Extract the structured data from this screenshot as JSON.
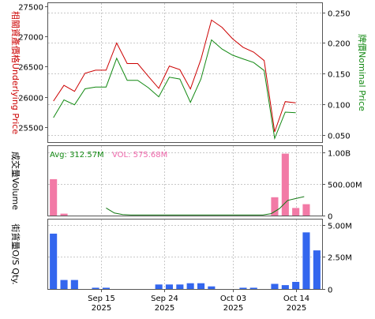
{
  "colors": {
    "underlying": "#cc0000",
    "nominal": "#118811",
    "volume_bar": "#f27aa6",
    "avg_line": "#117711",
    "qty_bar": "#3366ee",
    "grid": "#c8c8c8",
    "frame": "#555555",
    "vol_label": "#ee66aa",
    "avg_label": "#118811"
  },
  "chart_data": [
    {
      "type": "line",
      "panel": "price",
      "y_left_label": "相關資產價格Underlying Price",
      "y_right_label": "牌價Nominal Price",
      "y_left_ticks": [
        "27500",
        "27000",
        "26500",
        "26000",
        "25500"
      ],
      "y_right_ticks": [
        "0.250",
        "0.200",
        "0.150",
        "0.100",
        "0.050"
      ],
      "y_left_lim": [
        25250,
        27550
      ],
      "y_right_lim": [
        0.038,
        0.265
      ],
      "x": [
        "2025-09-10",
        "2025-09-11",
        "2025-09-12",
        "2025-09-15",
        "2025-09-16",
        "2025-09-17",
        "2025-09-18",
        "2025-09-19",
        "2025-09-22",
        "2025-09-23",
        "2025-09-24",
        "2025-09-25",
        "2025-09-26",
        "2025-09-29",
        "2025-09-30",
        "2025-10-02",
        "2025-10-03",
        "2025-10-06",
        "2025-10-08",
        "2025-10-09",
        "2025-10-10",
        "2025-10-13",
        "2025-10-14",
        "2025-10-15"
      ],
      "series": [
        {
          "role": "underlying",
          "axis": "left",
          "values": [
            25930,
            26190,
            26090,
            26390,
            26440,
            26440,
            26890,
            26550,
            26550,
            26340,
            26140,
            26510,
            26450,
            26130,
            26620,
            27270,
            27150,
            26960,
            26820,
            26740,
            26600,
            25420,
            25920,
            25900
          ]
        },
        {
          "role": "nominal",
          "axis": "right",
          "values": [
            0.078,
            0.107,
            0.099,
            0.125,
            0.128,
            0.128,
            0.175,
            0.139,
            0.139,
            0.127,
            0.112,
            0.144,
            0.141,
            0.103,
            0.141,
            0.205,
            0.19,
            0.18,
            0.174,
            0.168,
            0.155,
            0.044,
            0.087,
            0.086
          ]
        }
      ]
    },
    {
      "type": "bar",
      "panel": "volume",
      "y_left_label": "成交量Volume",
      "y_right_ticks": [
        "1.00B",
        "500.00M",
        "0"
      ],
      "ylim": [
        0,
        1100000000
      ],
      "avg_label": "Avg: 312.57M",
      "vol_label": "VOL: 575.68M",
      "values": [
        575680000,
        30000000,
        0,
        0,
        0,
        0,
        0,
        0,
        0,
        0,
        0,
        0,
        0,
        0,
        0,
        0,
        0,
        0,
        0,
        0,
        0,
        290000000,
        980000000,
        120000000,
        180000000
      ],
      "bar_days": [
        1,
        2,
        3,
        4,
        5,
        6,
        7,
        8,
        9,
        10,
        11,
        12,
        13,
        14,
        15,
        16,
        17,
        18,
        19,
        20,
        21,
        22,
        23,
        24,
        25
      ],
      "avg_x_start_day": 6,
      "avg_values": [
        120000000,
        40000000,
        15000000,
        10000000,
        10000000,
        10000000,
        10000000,
        10000000,
        10000000,
        10000000,
        10000000,
        10000000,
        10000000,
        10000000,
        10000000,
        10000000,
        10000000,
        10000000,
        10000000,
        10000000,
        30000000,
        110000000,
        240000000,
        270000000,
        300000000
      ]
    },
    {
      "type": "bar",
      "panel": "os_qty",
      "y_left_label": "街貨量O/S Qty.",
      "y_right_ticks": [
        "5.00M",
        "2.50M",
        "0"
      ],
      "ylim": [
        0,
        5400000
      ],
      "values": [
        4300000,
        700000,
        700000,
        0,
        100000,
        100000,
        0,
        0,
        0,
        0,
        350000,
        350000,
        350000,
        450000,
        450000,
        200000,
        0,
        0,
        100000,
        100000,
        0,
        400000,
        300000,
        550000,
        4400000,
        3000000
      ],
      "bar_days": [
        1,
        2,
        3,
        4,
        5,
        6,
        7,
        8,
        9,
        10,
        11,
        12,
        13,
        14,
        15,
        16,
        17,
        18,
        19,
        20,
        21,
        22,
        23,
        24,
        25,
        26
      ]
    }
  ],
  "x_axis": {
    "ticks": [
      {
        "line1": "Sep 15",
        "line2": "2025",
        "day": 5.5
      },
      {
        "line1": "Sep 24",
        "line2": "2025",
        "day": 11.5
      },
      {
        "line1": "Oct 03",
        "line2": "2025",
        "day": 18
      },
      {
        "line1": "Oct 14",
        "line2": "2025",
        "day": 24
      }
    ]
  }
}
